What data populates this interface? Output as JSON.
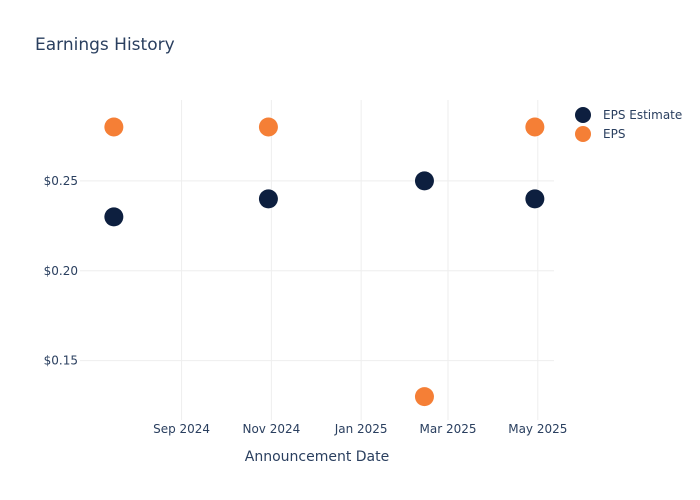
{
  "chart_data": {
    "type": "scatter",
    "title": "Earnings History",
    "xlabel": "Announcement Date",
    "ylabel": "",
    "x_ticks": [
      "Sep 2024",
      "Nov 2024",
      "Jan 2025",
      "Mar 2025",
      "May 2025"
    ],
    "x_tick_dates": [
      "2024-09-01",
      "2024-11-01",
      "2025-01-01",
      "2025-03-01",
      "2025-05-01"
    ],
    "xlim": [
      "2024-06-24",
      "2025-05-12"
    ],
    "y_ticks": [
      "$0.15",
      "$0.20",
      "$0.25"
    ],
    "y_tick_values": [
      0.15,
      0.2,
      0.25
    ],
    "ylim": [
      0.117,
      0.295
    ],
    "grid": true,
    "legend_position": "top-right",
    "series": [
      {
        "name": "EPS Estimate",
        "color": "#0d1f3f",
        "points": [
          {
            "x": "2024-07-17",
            "y": 0.23
          },
          {
            "x": "2024-10-30",
            "y": 0.24
          },
          {
            "x": "2025-02-13",
            "y": 0.25
          },
          {
            "x": "2025-04-29",
            "y": 0.24
          }
        ]
      },
      {
        "name": "EPS",
        "color": "#f57f36",
        "points": [
          {
            "x": "2024-07-17",
            "y": 0.28
          },
          {
            "x": "2024-10-30",
            "y": 0.28
          },
          {
            "x": "2025-02-13",
            "y": 0.13
          },
          {
            "x": "2025-04-29",
            "y": 0.28
          }
        ]
      }
    ]
  }
}
